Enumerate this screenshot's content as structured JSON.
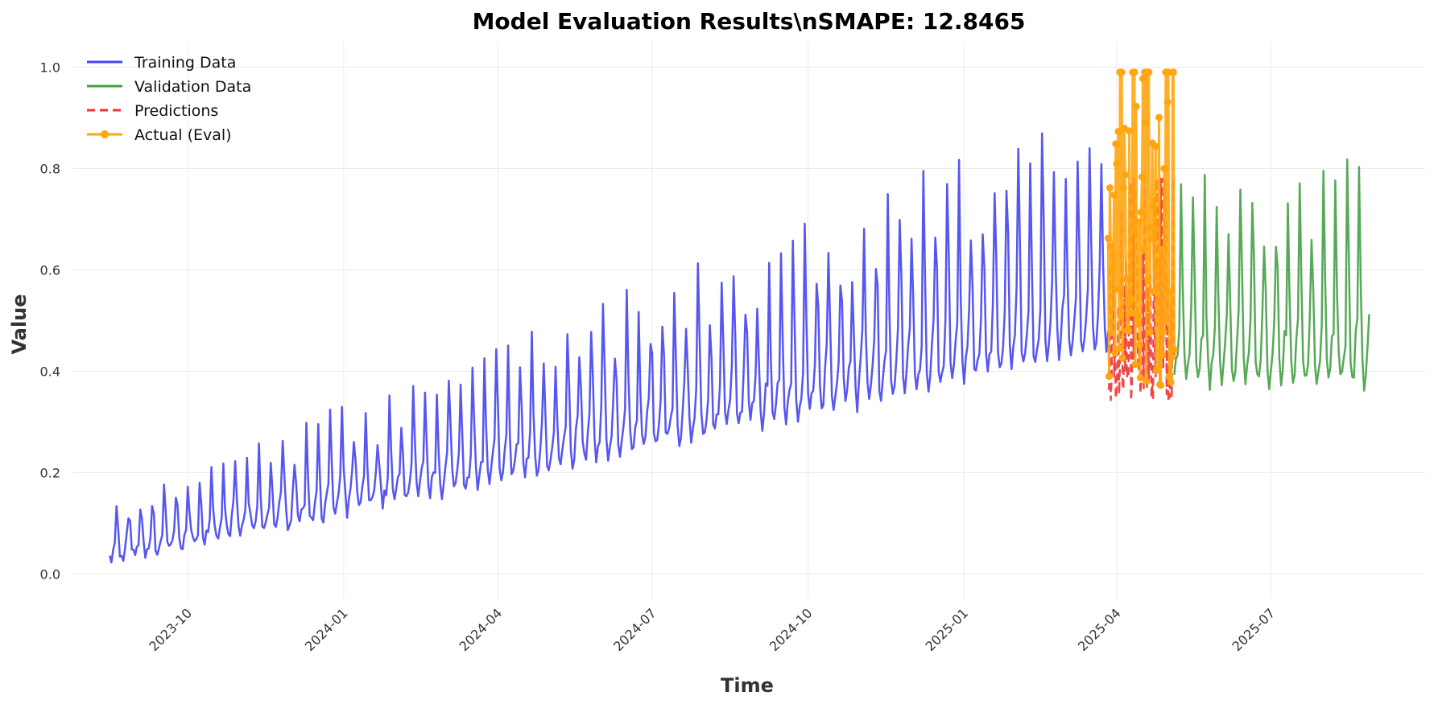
{
  "chart_data": {
    "type": "line",
    "title": "Model Evaluation Results\\nSMAPE: 12.8465",
    "xlabel": "Time",
    "ylabel": "Value",
    "xlim": [
      "2023-07-25",
      "2025-09-30"
    ],
    "ylim": [
      -0.05,
      1.05
    ],
    "grid": true,
    "legend_position": "top-left",
    "x_ticks": [
      "2023-10",
      "2024-01",
      "2024-04",
      "2024-07",
      "2024-10",
      "2025-01",
      "2025-04",
      "2025-07"
    ],
    "y_ticks": [
      "0.0",
      "0.2",
      "0.4",
      "0.6",
      "0.8",
      "1.0"
    ],
    "series": [
      {
        "name": "Training Data",
        "color": "#4444ee",
        "style": "solid",
        "start": "2023-08-16",
        "end": "2025-03-27",
        "period_days": 7,
        "baseline_start": 0.02,
        "baseline_end": 0.42,
        "amplitude_start": 0.1,
        "amplitude_end": 0.45,
        "min_value": 0.0,
        "max_value": 1.0
      },
      {
        "name": "Validation Data",
        "color": "#44a044",
        "style": "solid",
        "start": "2025-05-05",
        "end": "2025-08-28",
        "period_days": 7,
        "baseline": 0.36,
        "amplitude": 0.38,
        "min_value": 0.29,
        "max_value": 0.94
      },
      {
        "name": "Predictions",
        "color": "#ee3333",
        "style": "dashed",
        "start": "2025-03-27",
        "end": "2025-05-05",
        "min_value": 0.34,
        "max_value": 0.78
      },
      {
        "name": "Actual (Eval)",
        "color": "#ffa510",
        "style": "solid-markers",
        "start": "2025-03-27",
        "end": "2025-05-05",
        "min_value": 0.37,
        "max_value": 0.99
      }
    ]
  }
}
